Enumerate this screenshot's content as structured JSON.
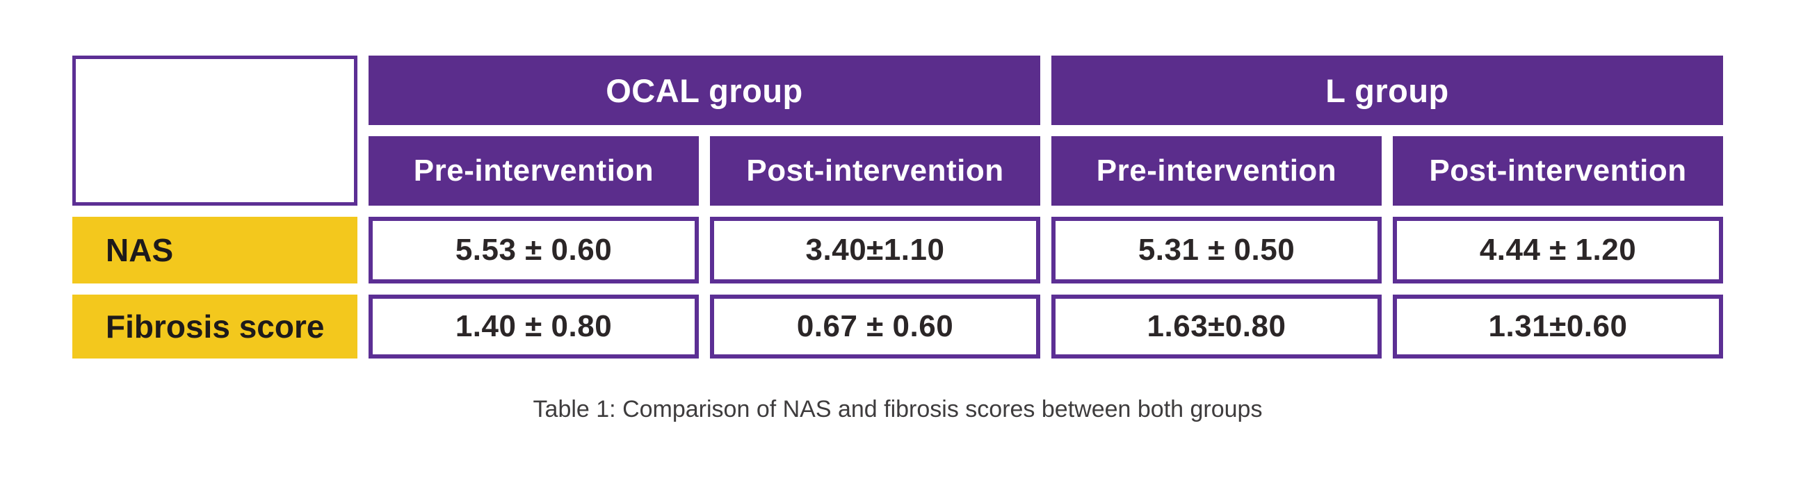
{
  "theme": {
    "purple": "#5b2d8c",
    "border_purple": "#5c2f94",
    "yellow": "#f3c81d",
    "text_dark": "#2b2627",
    "label_text": "#1d1a1b",
    "caption_color": "#3e3c3d",
    "background": "#ffffff"
  },
  "chart_data": {
    "type": "table",
    "title": "Table 1: Comparison of NAS and fibrosis scores between both groups",
    "column_groups": [
      {
        "label": "OCAL group",
        "sub_columns": [
          "Pre-intervention",
          "Post-intervention"
        ]
      },
      {
        "label": "L group",
        "sub_columns": [
          "Pre-intervention",
          "Post-intervention"
        ]
      }
    ],
    "sub_headers": [
      "Pre-intervention",
      "Post-intervention",
      "Pre-intervention",
      "Post-intervention"
    ],
    "rows": [
      {
        "label": "NAS",
        "cells": [
          "5.53 ± 0.60",
          "3.40±1.10",
          "5.31 ± 0.50",
          "4.44 ± 1.20"
        ],
        "values": [
          {
            "group": "OCAL group",
            "phase": "Pre-intervention",
            "mean": 5.53,
            "sd": 0.6
          },
          {
            "group": "OCAL group",
            "phase": "Post-intervention",
            "mean": 3.4,
            "sd": 1.1
          },
          {
            "group": "L group",
            "phase": "Pre-intervention",
            "mean": 5.31,
            "sd": 0.5
          },
          {
            "group": "L group",
            "phase": "Post-intervention",
            "mean": 4.44,
            "sd": 1.2
          }
        ]
      },
      {
        "label": "Fibrosis score",
        "cells": [
          "1.40 ± 0.80",
          "0.67 ± 0.60",
          "1.63±0.80",
          "1.31±0.60"
        ],
        "values": [
          {
            "group": "OCAL group",
            "phase": "Pre-intervention",
            "mean": 1.4,
            "sd": 0.8
          },
          {
            "group": "OCAL group",
            "phase": "Post-intervention",
            "mean": 0.67,
            "sd": 0.6
          },
          {
            "group": "L group",
            "phase": "Pre-intervention",
            "mean": 1.63,
            "sd": 0.8
          },
          {
            "group": "L group",
            "phase": "Post-intervention",
            "mean": 1.31,
            "sd": 0.6
          }
        ]
      }
    ],
    "legend_position": "none",
    "grid": false
  }
}
